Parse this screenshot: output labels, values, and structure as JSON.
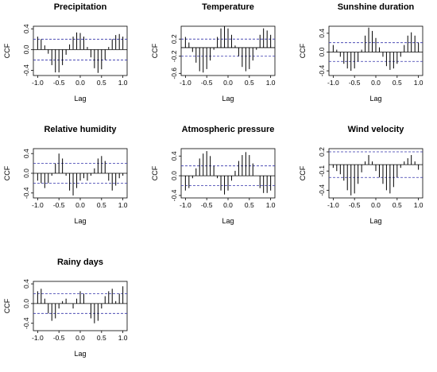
{
  "colors": {
    "spike": "#000000",
    "zero": "#000000",
    "band": "#3333aa",
    "frame": "#000000"
  },
  "chart_data": [
    {
      "type": "bar",
      "title": "Precipitation",
      "xlabel": "Lag",
      "ylabel": "CCF",
      "ylim": [
        -0.5,
        0.45
      ],
      "xlim": [
        -1.1,
        1.1
      ],
      "yticks": [
        "-0.4",
        "0.0",
        "0.4"
      ],
      "band": 0.2,
      "xticks": [
        "-1.0",
        "-0.5",
        "0.0",
        "0.5",
        "1.0"
      ],
      "grid": false,
      "lags": [
        -1.0,
        -0.917,
        -0.833,
        -0.75,
        -0.667,
        -0.583,
        -0.5,
        -0.417,
        -0.333,
        -0.25,
        -0.167,
        -0.083,
        0.0,
        0.083,
        0.167,
        0.25,
        0.333,
        0.417,
        0.5,
        0.583,
        0.667,
        0.75,
        0.833,
        0.917,
        1.0
      ],
      "values": [
        0.25,
        0.2,
        0.08,
        -0.08,
        -0.3,
        -0.44,
        -0.44,
        -0.3,
        -0.1,
        0.1,
        0.25,
        0.33,
        0.32,
        0.25,
        0.05,
        -0.15,
        -0.36,
        -0.45,
        -0.38,
        -0.2,
        0.05,
        0.2,
        0.28,
        0.3,
        0.25
      ]
    },
    {
      "type": "bar",
      "title": "Temperature",
      "xlabel": "Lag",
      "ylabel": "CCF",
      "ylim": [
        -0.65,
        0.5
      ],
      "xlim": [
        -1.1,
        1.1
      ],
      "yticks": [
        "-0.6",
        "-0.2",
        "0.2"
      ],
      "band": 0.2,
      "xticks": [
        "-1.0",
        "-0.5",
        "0.0",
        "0.5",
        "1.0"
      ],
      "grid": false,
      "lags": [
        -1.0,
        -0.917,
        -0.833,
        -0.75,
        -0.667,
        -0.583,
        -0.5,
        -0.417,
        -0.333,
        -0.25,
        -0.167,
        -0.083,
        0.0,
        0.083,
        0.167,
        0.25,
        0.333,
        0.417,
        0.5,
        0.583,
        0.667,
        0.75,
        0.833,
        0.917,
        1.0
      ],
      "values": [
        0.25,
        0.12,
        -0.1,
        -0.35,
        -0.55,
        -0.58,
        -0.5,
        -0.3,
        -0.05,
        0.25,
        0.45,
        0.5,
        0.45,
        0.3,
        0.05,
        -0.2,
        -0.45,
        -0.55,
        -0.5,
        -0.3,
        -0.05,
        0.3,
        0.45,
        0.4,
        0.3
      ]
    },
    {
      "type": "bar",
      "title": "Sunshine duration",
      "xlabel": "Lag",
      "ylabel": "CCF",
      "ylim": [
        -0.5,
        0.55
      ],
      "xlim": [
        -1.1,
        1.1
      ],
      "yticks": [
        "-0.4",
        "0.0",
        "0.4"
      ],
      "band": 0.2,
      "xticks": [
        "-1.0",
        "-0.5",
        "0.0",
        "0.5",
        "1.0"
      ],
      "grid": false,
      "lags": [
        -1.0,
        -0.917,
        -0.833,
        -0.75,
        -0.667,
        -0.583,
        -0.5,
        -0.417,
        -0.333,
        -0.25,
        -0.167,
        -0.083,
        0.0,
        0.083,
        0.167,
        0.25,
        0.333,
        0.417,
        0.5,
        0.583,
        0.667,
        0.75,
        0.833,
        0.917,
        1.0
      ],
      "values": [
        0.15,
        0.05,
        -0.1,
        -0.25,
        -0.35,
        -0.4,
        -0.35,
        -0.2,
        0.05,
        0.35,
        0.52,
        0.45,
        0.3,
        0.1,
        -0.1,
        -0.3,
        -0.38,
        -0.35,
        -0.25,
        -0.1,
        0.15,
        0.35,
        0.42,
        0.35,
        0.2
      ]
    },
    {
      "type": "bar",
      "title": "Relative humidity",
      "xlabel": "Lag",
      "ylabel": "CCF",
      "ylim": [
        -0.5,
        0.5
      ],
      "xlim": [
        -1.1,
        1.1
      ],
      "yticks": [
        "-0.4",
        "0.0",
        "0.4"
      ],
      "band": 0.2,
      "xticks": [
        "-1.0",
        "-0.5",
        "0.0",
        "0.5",
        "1.0"
      ],
      "grid": false,
      "lags": [
        -1.0,
        -0.917,
        -0.833,
        -0.75,
        -0.667,
        -0.583,
        -0.5,
        -0.417,
        -0.333,
        -0.25,
        -0.167,
        -0.083,
        0.0,
        0.083,
        0.167,
        0.25,
        0.333,
        0.417,
        0.5,
        0.583,
        0.667,
        0.75,
        0.833,
        0.917,
        1.0
      ],
      "values": [
        -0.15,
        -0.2,
        -0.3,
        -0.2,
        -0.05,
        0.2,
        0.4,
        0.3,
        -0.05,
        -0.35,
        -0.45,
        -0.3,
        -0.15,
        -0.1,
        -0.15,
        -0.05,
        0.1,
        0.3,
        0.35,
        0.25,
        -0.15,
        -0.35,
        -0.25,
        -0.1,
        -0.05
      ]
    },
    {
      "type": "bar",
      "title": "Atmospheric pressure",
      "xlabel": "Lag",
      "ylabel": "CCF",
      "ylim": [
        -0.45,
        0.55
      ],
      "xlim": [
        -1.1,
        1.1
      ],
      "yticks": [
        "-0.4",
        "0.0",
        "0.4"
      ],
      "band": 0.2,
      "xticks": [
        "-1.0",
        "-0.5",
        "0.0",
        "0.5",
        "1.0"
      ],
      "grid": false,
      "lags": [
        -1.0,
        -0.917,
        -0.833,
        -0.75,
        -0.667,
        -0.583,
        -0.5,
        -0.417,
        -0.333,
        -0.25,
        -0.167,
        -0.083,
        0.0,
        0.083,
        0.167,
        0.25,
        0.333,
        0.417,
        0.5,
        0.583,
        0.667,
        0.75,
        0.833,
        0.917,
        1.0
      ],
      "values": [
        -0.3,
        -0.25,
        -0.05,
        0.15,
        0.35,
        0.45,
        0.5,
        0.4,
        0.2,
        -0.05,
        -0.3,
        -0.38,
        -0.3,
        -0.1,
        0.1,
        0.3,
        0.42,
        0.48,
        0.42,
        0.25,
        0.0,
        -0.25,
        -0.35,
        -0.35,
        -0.3
      ]
    },
    {
      "type": "bar",
      "title": "Wind velocity",
      "xlabel": "Lag",
      "ylabel": "CCF",
      "ylim": [
        -0.52,
        0.25
      ],
      "xlim": [
        -1.1,
        1.1
      ],
      "yticks": [
        "-0.4",
        "-0.1",
        "0.2"
      ],
      "band": 0.2,
      "xticks": [
        "-1.0",
        "-0.5",
        "0.0",
        "0.5",
        "1.0"
      ],
      "grid": false,
      "lags": [
        -1.0,
        -0.917,
        -0.833,
        -0.75,
        -0.667,
        -0.583,
        -0.5,
        -0.417,
        -0.333,
        -0.25,
        -0.167,
        -0.083,
        0.0,
        0.083,
        0.167,
        0.25,
        0.333,
        0.417,
        0.5,
        0.583,
        0.667,
        0.75,
        0.833,
        0.917,
        1.0
      ],
      "values": [
        -0.05,
        -0.1,
        -0.15,
        -0.25,
        -0.4,
        -0.48,
        -0.45,
        -0.3,
        -0.12,
        0.05,
        0.15,
        0.05,
        -0.1,
        -0.2,
        -0.3,
        -0.4,
        -0.45,
        -0.35,
        -0.2,
        -0.05,
        0.05,
        0.1,
        0.15,
        0.05,
        -0.08
      ]
    },
    {
      "type": "bar",
      "title": "Rainy days",
      "xlabel": "Lag",
      "ylabel": "CCF",
      "ylim": [
        -0.55,
        0.45
      ],
      "xlim": [
        -1.1,
        1.1
      ],
      "yticks": [
        "-0.4",
        "0.0",
        "0.4"
      ],
      "band": 0.2,
      "xticks": [
        "-1.0",
        "-0.5",
        "0.0",
        "0.5",
        "1.0"
      ],
      "grid": false,
      "lags": [
        -1.0,
        -0.917,
        -0.833,
        -0.75,
        -0.667,
        -0.583,
        -0.5,
        -0.417,
        -0.333,
        -0.25,
        -0.167,
        -0.083,
        0.0,
        0.083,
        0.167,
        0.25,
        0.333,
        0.417,
        0.5,
        0.583,
        0.667,
        0.75,
        0.833,
        0.917,
        1.0
      ],
      "values": [
        0.25,
        0.3,
        0.1,
        -0.2,
        -0.35,
        -0.3,
        -0.1,
        0.05,
        0.1,
        0.0,
        -0.1,
        0.1,
        0.25,
        0.2,
        0.0,
        -0.3,
        -0.4,
        -0.35,
        -0.1,
        0.15,
        0.25,
        0.3,
        0.05,
        0.2,
        0.35
      ]
    }
  ]
}
